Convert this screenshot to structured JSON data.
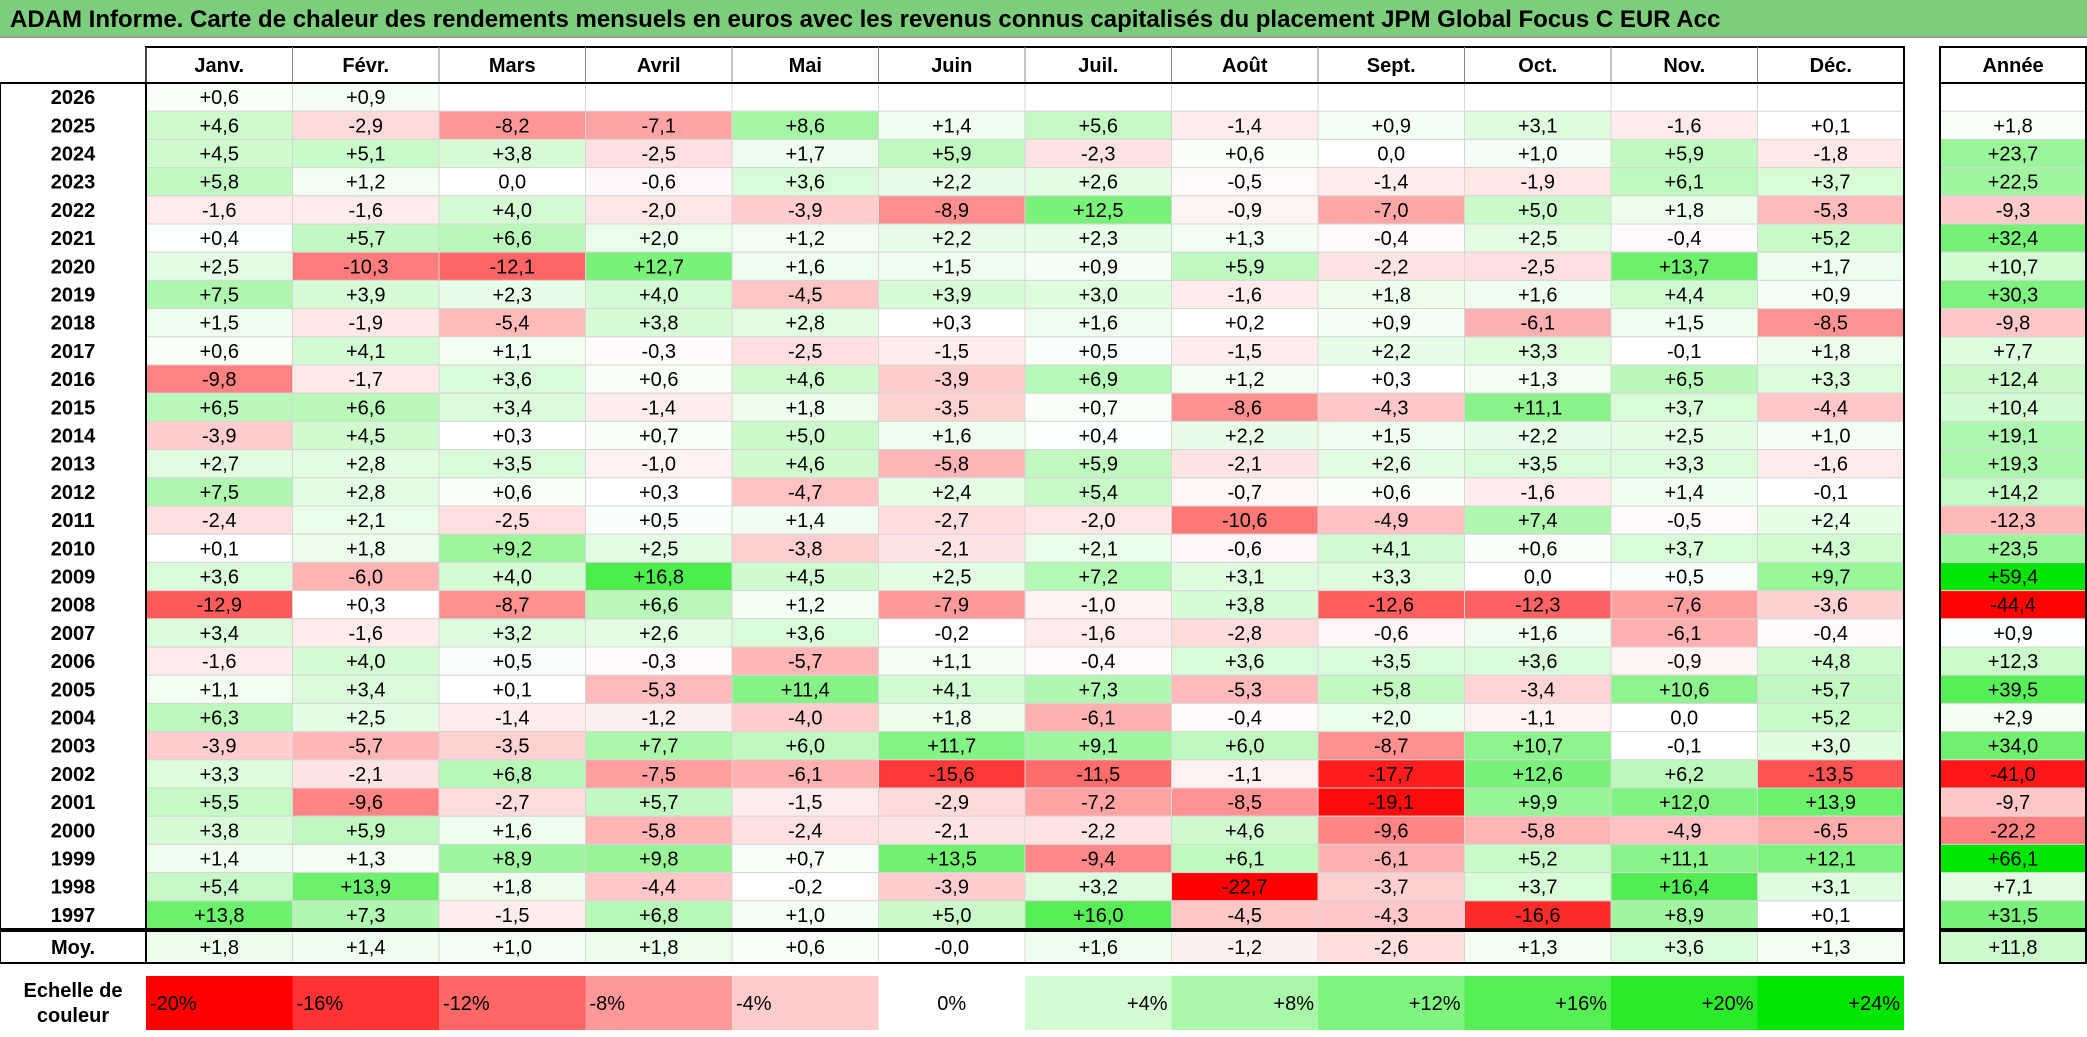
{
  "title": "ADAM Informe. Carte de chaleur des rendements mensuels en euros avec les revenus connus capitalisés du placement JPM Global Focus C EUR Acc",
  "chart_data": {
    "type": "heatmap",
    "title": "ADAM Informe. Carte de chaleur des rendements mensuels en euros avec les revenus connus capitalisés du placement JPM Global Focus C EUR Acc",
    "months": [
      "Janv.",
      "Févr.",
      "Mars",
      "Avril",
      "Mai",
      "Juin",
      "Juil.",
      "Août",
      "Sept.",
      "Oct.",
      "Nov.",
      "Déc."
    ],
    "year_header": "Année",
    "rows": [
      {
        "year": "2026",
        "values": [
          0.6,
          0.9,
          null,
          null,
          null,
          null,
          null,
          null,
          null,
          null,
          null,
          null
        ],
        "annual": null
      },
      {
        "year": "2025",
        "values": [
          4.6,
          -2.9,
          -8.2,
          -7.1,
          8.6,
          1.4,
          5.6,
          -1.4,
          0.9,
          3.1,
          -1.6,
          0.1
        ],
        "annual": 1.8
      },
      {
        "year": "2024",
        "values": [
          4.5,
          5.1,
          3.8,
          -2.5,
          1.7,
          5.9,
          -2.3,
          0.6,
          0.0,
          1.0,
          5.9,
          -1.8
        ],
        "annual": 23.7
      },
      {
        "year": "2023",
        "values": [
          5.8,
          1.2,
          0.0,
          -0.6,
          3.6,
          2.2,
          2.6,
          -0.5,
          -1.4,
          -1.9,
          6.1,
          3.7
        ],
        "annual": 22.5
      },
      {
        "year": "2022",
        "values": [
          -1.6,
          -1.6,
          4.0,
          -2.0,
          -3.9,
          -8.9,
          12.5,
          -0.9,
          -7.0,
          5.0,
          1.8,
          -5.3
        ],
        "annual": -9.3
      },
      {
        "year": "2021",
        "values": [
          0.4,
          5.7,
          6.6,
          2.0,
          1.2,
          2.2,
          2.3,
          1.3,
          -0.4,
          2.5,
          -0.4,
          5.2
        ],
        "annual": 32.4
      },
      {
        "year": "2020",
        "values": [
          2.5,
          -10.3,
          -12.1,
          12.7,
          1.6,
          1.5,
          0.9,
          5.9,
          -2.2,
          -2.5,
          13.7,
          1.7
        ],
        "annual": 10.7
      },
      {
        "year": "2019",
        "values": [
          7.5,
          3.9,
          2.3,
          4.0,
          -4.5,
          3.9,
          3.0,
          -1.6,
          1.8,
          1.6,
          4.4,
          0.9
        ],
        "annual": 30.3
      },
      {
        "year": "2018",
        "values": [
          1.5,
          -1.9,
          -5.4,
          3.8,
          2.8,
          0.3,
          1.6,
          0.2,
          0.9,
          -6.1,
          1.5,
          -8.5
        ],
        "annual": -9.8
      },
      {
        "year": "2017",
        "values": [
          0.6,
          4.1,
          1.1,
          -0.3,
          -2.5,
          -1.5,
          0.5,
          -1.5,
          2.2,
          3.3,
          -0.1,
          1.8
        ],
        "annual": 7.7
      },
      {
        "year": "2016",
        "values": [
          -9.8,
          -1.7,
          3.6,
          0.6,
          4.6,
          -3.9,
          6.9,
          1.2,
          0.3,
          1.3,
          6.5,
          3.3
        ],
        "annual": 12.4
      },
      {
        "year": "2015",
        "values": [
          6.5,
          6.6,
          3.4,
          -1.4,
          1.8,
          -3.5,
          0.7,
          -8.6,
          -4.3,
          11.1,
          3.7,
          -4.4
        ],
        "annual": 10.4
      },
      {
        "year": "2014",
        "values": [
          -3.9,
          4.5,
          0.3,
          0.7,
          5.0,
          1.6,
          0.4,
          2.2,
          1.5,
          2.2,
          2.5,
          1.0
        ],
        "annual": 19.1
      },
      {
        "year": "2013",
        "values": [
          2.7,
          2.8,
          3.5,
          -1.0,
          4.6,
          -5.8,
          5.9,
          -2.1,
          2.6,
          3.5,
          3.3,
          -1.6
        ],
        "annual": 19.3
      },
      {
        "year": "2012",
        "values": [
          7.5,
          2.8,
          0.6,
          0.3,
          -4.7,
          2.4,
          5.4,
          -0.7,
          0.6,
          -1.6,
          1.4,
          -0.1
        ],
        "annual": 14.2
      },
      {
        "year": "2011",
        "values": [
          -2.4,
          2.1,
          -2.5,
          0.5,
          1.4,
          -2.7,
          -2.0,
          -10.6,
          -4.9,
          7.4,
          -0.5,
          2.4
        ],
        "annual": -12.3
      },
      {
        "year": "2010",
        "values": [
          0.1,
          1.8,
          9.2,
          2.5,
          -3.8,
          -2.1,
          2.1,
          -0.6,
          4.1,
          0.6,
          3.7,
          4.3
        ],
        "annual": 23.5
      },
      {
        "year": "2009",
        "values": [
          3.6,
          -6.0,
          4.0,
          16.8,
          4.5,
          2.5,
          7.2,
          3.1,
          3.3,
          0.0,
          0.5,
          9.7
        ],
        "annual": 59.4
      },
      {
        "year": "2008",
        "values": [
          -12.9,
          0.3,
          -8.7,
          6.6,
          1.2,
          -7.9,
          -1.0,
          3.8,
          -12.6,
          -12.3,
          -7.6,
          -3.6
        ],
        "annual": -44.4
      },
      {
        "year": "2007",
        "values": [
          3.4,
          -1.6,
          3.2,
          2.6,
          3.6,
          -0.2,
          -1.6,
          -2.8,
          -0.6,
          1.6,
          -6.1,
          -0.4
        ],
        "annual": 0.9
      },
      {
        "year": "2006",
        "values": [
          -1.6,
          4.0,
          0.5,
          -0.3,
          -5.7,
          1.1,
          -0.4,
          3.6,
          3.5,
          3.6,
          -0.9,
          4.8
        ],
        "annual": 12.3
      },
      {
        "year": "2005",
        "values": [
          1.1,
          3.4,
          0.1,
          -5.3,
          11.4,
          4.1,
          7.3,
          -5.3,
          5.8,
          -3.4,
          10.6,
          5.7
        ],
        "annual": 39.5
      },
      {
        "year": "2004",
        "values": [
          6.3,
          2.5,
          -1.4,
          -1.2,
          -4.0,
          1.8,
          -6.1,
          -0.4,
          2.0,
          -1.1,
          0.0,
          5.2
        ],
        "annual": 2.9
      },
      {
        "year": "2003",
        "values": [
          -3.9,
          -5.7,
          -3.5,
          7.7,
          6.0,
          11.7,
          9.1,
          6.0,
          -8.7,
          10.7,
          -0.1,
          3.0
        ],
        "annual": 34.0
      },
      {
        "year": "2002",
        "values": [
          3.3,
          -2.1,
          6.8,
          -7.5,
          -6.1,
          -15.6,
          -11.5,
          -1.1,
          -17.7,
          12.6,
          6.2,
          -13.5
        ],
        "annual": -41.0
      },
      {
        "year": "2001",
        "values": [
          5.5,
          -9.6,
          -2.7,
          5.7,
          -1.5,
          -2.9,
          -7.2,
          -8.5,
          -19.1,
          9.9,
          12.0,
          13.9
        ],
        "annual": -9.7
      },
      {
        "year": "2000",
        "values": [
          3.8,
          5.9,
          1.6,
          -5.8,
          -2.4,
          -2.1,
          -2.2,
          4.6,
          -9.6,
          -5.8,
          -4.9,
          -6.5
        ],
        "annual": -22.2
      },
      {
        "year": "1999",
        "values": [
          1.4,
          1.3,
          8.9,
          9.8,
          0.7,
          13.5,
          -9.4,
          6.1,
          -6.1,
          5.2,
          11.1,
          12.1
        ],
        "annual": 66.1
      },
      {
        "year": "1998",
        "values": [
          5.4,
          13.9,
          1.8,
          -4.4,
          -0.2,
          -3.9,
          3.2,
          -22.7,
          -3.7,
          3.7,
          16.4,
          3.1
        ],
        "annual": 7.1
      },
      {
        "year": "1997",
        "values": [
          13.8,
          7.3,
          -1.5,
          6.8,
          1.0,
          5.0,
          16.0,
          -4.5,
          -4.3,
          -16.6,
          8.9,
          0.1
        ],
        "annual": 31.5
      }
    ],
    "average": {
      "label": "Moy.",
      "values": [
        1.8,
        1.4,
        1.0,
        1.8,
        0.6,
        -0.0,
        1.6,
        -1.2,
        -2.6,
        1.3,
        3.6,
        1.3
      ],
      "annual": 11.8
    },
    "scale": {
      "label_line1": "Echelle de",
      "label_line2": "couleur",
      "stops": [
        -20,
        -16,
        -12,
        -8,
        -4,
        0,
        4,
        8,
        12,
        16,
        20,
        24
      ],
      "labels": [
        "-20%",
        "-16%",
        "-12%",
        "-8%",
        "-4%",
        "0%",
        "+4%",
        "+8%",
        "+12%",
        "+16%",
        "+20%",
        "+24%"
      ]
    }
  }
}
